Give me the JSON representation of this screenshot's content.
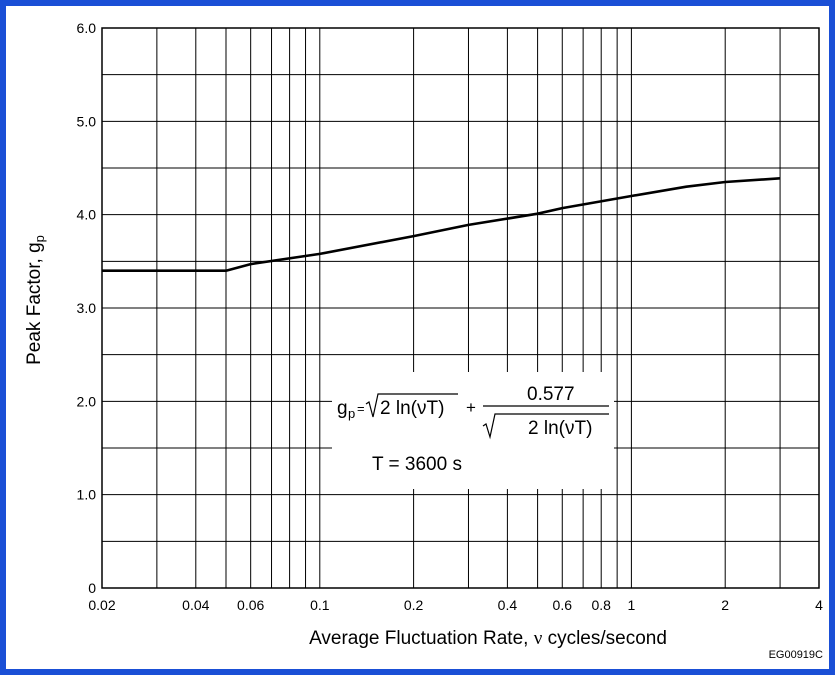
{
  "colors": {
    "frame": "#1a4fd6",
    "grid": "#000000",
    "curve": "#000000"
  },
  "chart_data": {
    "type": "line",
    "x_scale": "log",
    "xlabel_prefix": "Average Fluctuation Rate, ",
    "xlabel_symbol": "ν",
    "xlabel_suffix": " cycles/second",
    "ylabel_main": "Peak Factor, g",
    "ylabel_sub": "p",
    "xlim": [
      0.02,
      4
    ],
    "ylim": [
      0,
      6
    ],
    "x_tick_labels": [
      {
        "value": 0.02,
        "label": "0.02"
      },
      {
        "value": 0.04,
        "label": "0.04"
      },
      {
        "value": 0.06,
        "label": "0.06"
      },
      {
        "value": 0.1,
        "label": "0.1"
      },
      {
        "value": 0.2,
        "label": "0.2"
      },
      {
        "value": 0.4,
        "label": "0.4"
      },
      {
        "value": 0.6,
        "label": "0.6"
      },
      {
        "value": 0.8,
        "label": "0.8"
      },
      {
        "value": 1,
        "label": "1"
      },
      {
        "value": 2,
        "label": "2"
      },
      {
        "value": 4,
        "label": "4"
      }
    ],
    "y_tick_labels": [
      {
        "value": 0,
        "label": "0"
      },
      {
        "value": 1,
        "label": "1.0"
      },
      {
        "value": 2,
        "label": "2.0"
      },
      {
        "value": 3,
        "label": "3.0"
      },
      {
        "value": 4,
        "label": "4.0"
      },
      {
        "value": 5,
        "label": "5.0"
      },
      {
        "value": 6,
        "label": "6.0"
      }
    ],
    "x_gridlines": [
      0.02,
      0.03,
      0.04,
      0.05,
      0.06,
      0.07,
      0.08,
      0.09,
      0.1,
      0.2,
      0.3,
      0.4,
      0.5,
      0.6,
      0.7,
      0.8,
      0.9,
      1,
      2,
      3,
      4
    ],
    "y_gridlines": [
      0,
      0.5,
      1,
      1.5,
      2,
      2.5,
      3,
      3.5,
      4,
      4.5,
      5,
      5.5,
      6
    ],
    "grid": true,
    "series": [
      {
        "x": [
          0.02,
          0.05,
          0.06,
          0.1,
          0.2,
          0.3,
          0.5,
          0.6,
          1.0,
          1.5,
          2.0,
          3.0
        ],
        "y": [
          3.4,
          3.4,
          3.47,
          3.58,
          3.77,
          3.89,
          4.01,
          4.07,
          4.2,
          4.3,
          4.35,
          4.39
        ]
      }
    ],
    "annotation": {
      "g": "g",
      "p": "p",
      "eq": "=",
      "sqrt_arg": "2 ln(νT)",
      "plus": "+",
      "numerator": "0.577",
      "period": "T = 3600 s"
    },
    "figure_code": "EG00919C"
  }
}
